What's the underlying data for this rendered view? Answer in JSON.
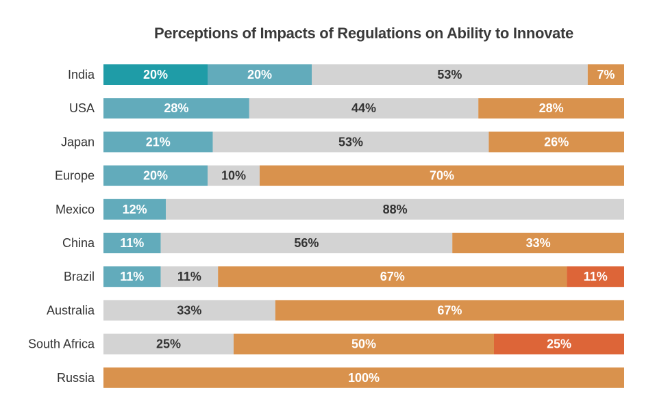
{
  "chart_data": {
    "type": "bar",
    "orientation": "horizontal",
    "stacked": true,
    "percent_stacked": true,
    "title": "Perceptions of Impacts of Regulations on Ability to Innovate",
    "xlabel": "",
    "ylabel": "",
    "xlim": [
      0,
      100
    ],
    "grid": false,
    "legend": "none",
    "categories": [
      "India",
      "USA",
      "Japan",
      "Europe",
      "Mexico",
      "China",
      "Brazil",
      "Australia",
      "South Africa",
      "Russia"
    ],
    "series": [
      {
        "color": "#1f9ca7",
        "label_color": "#ffffff",
        "values": [
          20,
          0,
          0,
          0,
          0,
          0,
          0,
          0,
          0,
          0
        ]
      },
      {
        "color": "#62abbb",
        "label_color": "#ffffff",
        "values": [
          20,
          28,
          21,
          20,
          12,
          11,
          11,
          0,
          0,
          0
        ]
      },
      {
        "color": "#d3d3d3",
        "label_color": "#333333",
        "values": [
          53,
          44,
          53,
          10,
          88,
          56,
          11,
          33,
          25,
          0
        ]
      },
      {
        "color": "#d9924d",
        "label_color": "#ffffff",
        "values": [
          7,
          28,
          26,
          70,
          0,
          33,
          67,
          67,
          50,
          100
        ]
      },
      {
        "color": "#dd6538",
        "label_color": "#ffffff",
        "values": [
          0,
          0,
          0,
          0,
          0,
          0,
          11,
          0,
          25,
          0
        ]
      }
    ],
    "data_labels": [
      [
        "20%",
        "20%",
        "53%",
        "7%",
        ""
      ],
      [
        "",
        "28%",
        "44%",
        "28%",
        ""
      ],
      [
        "",
        "21%",
        "53%",
        "26%",
        ""
      ],
      [
        "",
        "20%",
        "10%",
        "70%",
        ""
      ],
      [
        "",
        "12%",
        "88%",
        "",
        ""
      ],
      [
        "",
        "11%",
        "56%",
        "33%",
        ""
      ],
      [
        "",
        "11%",
        "11%",
        "67%",
        "11%"
      ],
      [
        "",
        "",
        "33%",
        "67%",
        ""
      ],
      [
        "",
        "",
        "25%",
        "50%",
        "25%"
      ],
      [
        "",
        "",
        "",
        "100%",
        ""
      ]
    ]
  }
}
